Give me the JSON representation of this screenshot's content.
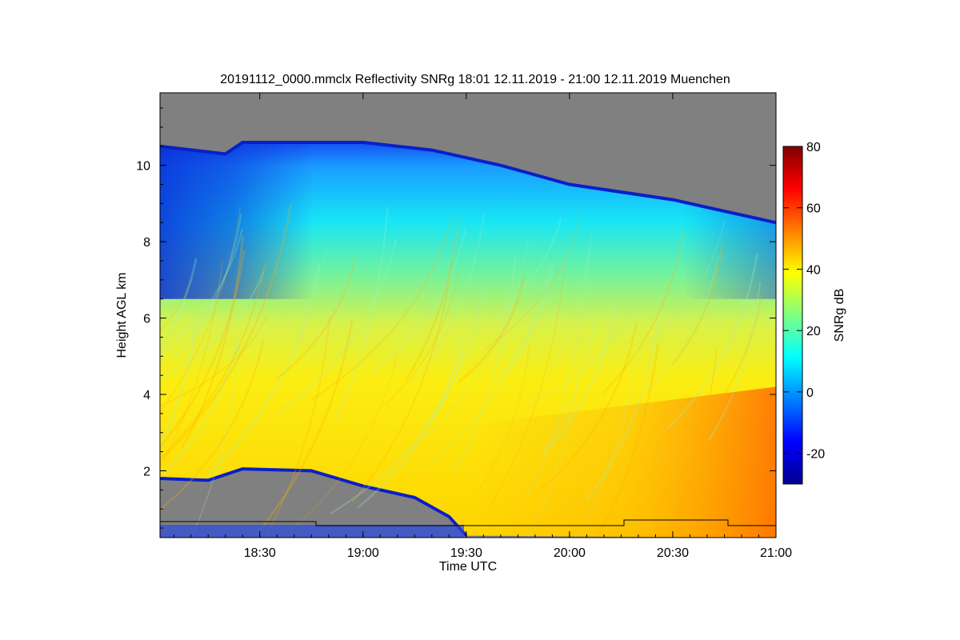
{
  "chart_data": {
    "type": "heatmap",
    "title": "20191112_0000.mmclx Reflectivity SNRg   18:01 12.11.2019 - 21:00 12.11.2019 Muenchen",
    "xlabel": "Time UTC",
    "ylabel": "Height AGL km",
    "colorbar_label": "SNRg dB",
    "xlim": [
      "18:01",
      "21:00"
    ],
    "ylim": [
      0.25,
      11.9
    ],
    "x_ticks": [
      "18:30",
      "19:00",
      "19:30",
      "20:00",
      "20:30",
      "21:00"
    ],
    "x_tick_minutes": [
      30,
      60,
      90,
      120,
      150,
      180
    ],
    "y_ticks": [
      "2",
      "4",
      "6",
      "8",
      "10"
    ],
    "y_tick_values": [
      2,
      4,
      6,
      8,
      10
    ],
    "colorbar_range": [
      -30,
      80
    ],
    "colorbar_ticks": [
      "-20",
      "0",
      "20",
      "40",
      "60",
      "80"
    ],
    "colorbar_tick_values": [
      -20,
      0,
      20,
      40,
      60,
      80
    ],
    "colormap": [
      "#00008f",
      "#0000ff",
      "#0080ff",
      "#00ffff",
      "#80ff80",
      "#ffff00",
      "#ff8000",
      "#ff0000",
      "#800000"
    ],
    "no_signal_color": "#808080",
    "echo_top_km": [
      {
        "t": "18:01",
        "km": 10.5
      },
      {
        "t": "18:20",
        "km": 10.3
      },
      {
        "t": "18:25",
        "km": 10.6
      },
      {
        "t": "19:00",
        "km": 10.6
      },
      {
        "t": "19:20",
        "km": 10.4
      },
      {
        "t": "19:40",
        "km": 10.0
      },
      {
        "t": "20:00",
        "km": 9.5
      },
      {
        "t": "20:30",
        "km": 9.1
      },
      {
        "t": "21:00",
        "km": 8.5
      }
    ],
    "cloud_base_km": [
      {
        "t": "18:01",
        "km": 1.8
      },
      {
        "t": "18:15",
        "km": 1.75
      },
      {
        "t": "18:25",
        "km": 2.05
      },
      {
        "t": "18:45",
        "km": 2.0
      },
      {
        "t": "19:00",
        "km": 1.6
      },
      {
        "t": "19:15",
        "km": 1.3
      },
      {
        "t": "19:25",
        "km": 0.8
      },
      {
        "t": "19:30",
        "km": 0.3
      }
    ]
  }
}
